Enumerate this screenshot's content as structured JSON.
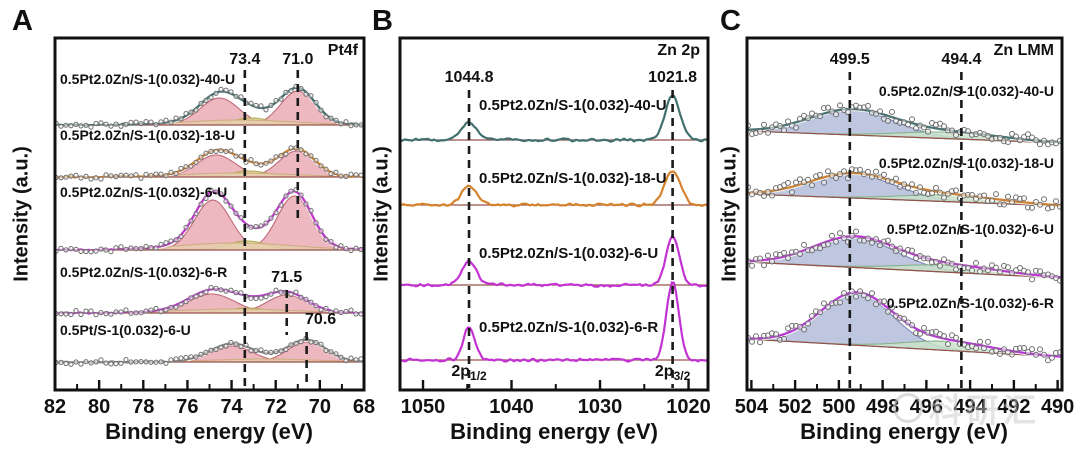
{
  "watermark": {
    "text": "科研汇",
    "color": "#c6c6c6"
  },
  "chart_data": [
    {
      "type": "line",
      "letter": "A",
      "corner_label": "Pt4f",
      "xlabel": "Binding energy (eV)",
      "ylabel": "Intensity (a.u.)",
      "x_range": [
        82,
        68
      ],
      "x_ticks": [
        82,
        80,
        78,
        76,
        74,
        72,
        70,
        68
      ],
      "x_minor_ticks": [
        81,
        79,
        77,
        75,
        73,
        71,
        69
      ],
      "annotations": [
        {
          "value": "73.4",
          "x_ev": 73.4,
          "line_top": 70,
          "line_bottom": 388,
          "label_y": 64,
          "label_dx": 0
        },
        {
          "value": "71.0",
          "x_ev": 71.0,
          "line_top": 70,
          "line_bottom": 223,
          "label_y": 64,
          "label_dx": 0
        },
        {
          "value": "71.5",
          "x_ev": 71.5,
          "line_top": 290,
          "line_bottom": 335,
          "label_y": 282,
          "label_dx": 0
        },
        {
          "value": "70.6",
          "x_ev": 70.6,
          "line_top": 332,
          "line_bottom": 388,
          "label_y": 324,
          "label_dx": 14
        }
      ],
      "traces": [
        {
          "label": "0.5Pt2.0Zn/S-1(0.032)-40-U",
          "color": "#41706f",
          "baseline": 125,
          "tilt": 0,
          "label_y": 84,
          "noise": 1.1,
          "components": [
            {
              "c": 74.55,
              "s": 0.88,
              "h": 27,
              "fill": "#eaabb4",
              "stroke": "#c06a78"
            },
            {
              "c": 71.0,
              "s": 0.78,
              "h": 34,
              "fill": "#eaabb4",
              "stroke": "#c06a78"
            },
            {
              "c": 73.1,
              "s": 0.85,
              "h": 7,
              "fill": "#e2df96",
              "stroke": "#b3aa56"
            },
            {
              "c": 73.6,
              "s": 2.5,
              "h": 5,
              "fill": "#e6cdb0",
              "stroke": "#cfac83"
            }
          ]
        },
        {
          "label": "0.5Pt2.0Zn/S-1(0.032)-18-U",
          "color": "#d5822d",
          "baseline": 177,
          "tilt": 0,
          "label_y": 140,
          "noise": 1.1,
          "components": [
            {
              "c": 74.7,
              "s": 0.88,
              "h": 22,
              "fill": "#eaabb4",
              "stroke": "#c06a78"
            },
            {
              "c": 71.05,
              "s": 0.8,
              "h": 26,
              "fill": "#eaabb4",
              "stroke": "#c06a78"
            },
            {
              "c": 73.2,
              "s": 0.85,
              "h": 6,
              "fill": "#e2df96",
              "stroke": "#b3aa56"
            },
            {
              "c": 73.7,
              "s": 2.5,
              "h": 4,
              "fill": "#e6cdb0",
              "stroke": "#cfac83"
            }
          ]
        },
        {
          "label": "0.5Pt2.0Zn/S-1(0.032)-6-U",
          "color": "#c236cf",
          "baseline": 250,
          "tilt": 0,
          "label_y": 197,
          "noise": 1.2,
          "components": [
            {
              "c": 74.85,
              "s": 0.82,
              "h": 50,
              "fill": "#eaabb4",
              "stroke": "#c06a78"
            },
            {
              "c": 71.15,
              "s": 0.78,
              "h": 54,
              "fill": "#eaabb4",
              "stroke": "#c06a78"
            },
            {
              "c": 73.3,
              "s": 0.9,
              "h": 9,
              "fill": "#e2df96",
              "stroke": "#b3aa56"
            },
            {
              "c": 73.8,
              "s": 2.6,
              "h": 7,
              "fill": "#e6cdb0",
              "stroke": "#cfac83"
            }
          ]
        },
        {
          "label": "0.5Pt2.0Zn/S-1(0.032)-6-R",
          "color": "#bb3bd0",
          "baseline": 313,
          "tilt": 0,
          "label_y": 277,
          "noise": 1.2,
          "components": [
            {
              "c": 74.9,
              "s": 1.05,
              "h": 19,
              "fill": "#eaabb4",
              "stroke": "#c06a78"
            },
            {
              "c": 71.5,
              "s": 0.9,
              "h": 18,
              "fill": "#eaabb4",
              "stroke": "#c06a78"
            },
            {
              "c": 73.3,
              "s": 0.9,
              "h": 5,
              "fill": "#e2df96",
              "stroke": "#b3aa56"
            },
            {
              "c": 73.8,
              "s": 2.6,
              "h": 4,
              "fill": "#e6cdb0",
              "stroke": "#cfac83"
            }
          ]
        },
        {
          "label": "0.5Pt/S-1(0.032)-6-U",
          "color": "#8a8a8a",
          "baseline": 362,
          "tilt": 0,
          "label_y": 335,
          "noise": 1.1,
          "components": [
            {
              "c": 74.0,
              "s": 0.95,
              "h": 16,
              "fill": "#eaabb4",
              "stroke": "#c06a78"
            },
            {
              "c": 70.6,
              "s": 0.85,
              "h": 20,
              "fill": "#eaabb4",
              "stroke": "#c06a78"
            },
            {
              "c": 72.5,
              "s": 2.4,
              "h": 3,
              "fill": "#e6cdb0",
              "stroke": "#cfac83"
            }
          ]
        }
      ]
    },
    {
      "type": "line",
      "letter": "B",
      "corner_label": "Zn 2p",
      "xlabel": "Binding energy (eV)",
      "ylabel": "Intensity (a.u.)",
      "x_range": [
        1052.6,
        1017.8
      ],
      "x_ticks": [
        1050,
        1040,
        1030,
        1020
      ],
      "x_minor_ticks": [
        1045,
        1035,
        1025
      ],
      "annotations": [
        {
          "value": "1044.8",
          "x_ev": 1044.8,
          "line_top": 90,
          "line_bottom": 388,
          "label_y": 82,
          "label_dx": 0
        },
        {
          "value": "1021.8",
          "x_ev": 1021.8,
          "line_top": 90,
          "line_bottom": 388,
          "label_y": 82,
          "label_dx": 0
        }
      ],
      "peak_id_labels": [
        {
          "base": "2p",
          "sub": "1/2",
          "x_ev": 1044.8,
          "y": 376
        },
        {
          "base": "2p",
          "sub": "3/2",
          "x_ev": 1021.8,
          "y": 376
        }
      ],
      "traces": [
        {
          "label": "0.5Pt2.0Zn/S-1(0.032)-40-U",
          "color": "#41706f",
          "baseline": 140,
          "tilt": 0,
          "label_y": 110,
          "noise": 1.7,
          "peaks": [
            {
              "c": 1044.8,
              "s": 0.9,
              "h": 18
            },
            {
              "c": 1021.8,
              "s": 0.85,
              "h": 44
            }
          ]
        },
        {
          "label": "0.5Pt2.0Zn/S-1(0.032)-18-U",
          "color": "#d5822d",
          "baseline": 205,
          "tilt": 0,
          "label_y": 183,
          "noise": 1.7,
          "peaks": [
            {
              "c": 1044.8,
              "s": 0.9,
              "h": 18
            },
            {
              "c": 1021.8,
              "s": 0.9,
              "h": 34
            }
          ]
        },
        {
          "label": "0.5Pt2.0Zn/S-1(0.032)-6-U",
          "color": "#c332d2",
          "baseline": 285,
          "tilt": 0,
          "label_y": 258,
          "noise": 1.8,
          "peaks": [
            {
              "c": 1044.8,
              "s": 0.8,
              "h": 24
            },
            {
              "c": 1021.8,
              "s": 0.75,
              "h": 48
            }
          ]
        },
        {
          "label": "0.5Pt2.0Zn/S-1(0.032)-6-R",
          "color": "#c332d2",
          "baseline": 360,
          "tilt": 0,
          "label_y": 332,
          "noise": 1.8,
          "peaks": [
            {
              "c": 1044.8,
              "s": 0.65,
              "h": 33
            },
            {
              "c": 1021.8,
              "s": 0.7,
              "h": 78
            }
          ]
        }
      ]
    },
    {
      "type": "line",
      "letter": "C",
      "corner_label": "Zn LMM",
      "xlabel": "Binding energy (eV)",
      "ylabel": "Intensity (a.u.)",
      "x_range": [
        504.2,
        489.8
      ],
      "x_ticks": [
        504,
        502,
        500,
        498,
        496,
        494,
        492,
        490
      ],
      "x_minor_ticks": [
        503,
        501,
        499,
        497,
        495,
        493,
        491
      ],
      "annotations": [
        {
          "value": "499.5",
          "x_ev": 499.5,
          "line_top": 72,
          "line_bottom": 388,
          "label_y": 64,
          "label_dx": 0
        },
        {
          "value": "494.4",
          "x_ev": 494.4,
          "line_top": 72,
          "line_bottom": 388,
          "label_y": 64,
          "label_dx": 0
        }
      ],
      "traces": [
        {
          "label": "0.5Pt2.0Zn/S-1(0.032)-40-U",
          "color": "#4a7473",
          "baseline": 137,
          "tilt": 12,
          "label_y": 96,
          "scatter_jitter": 5.5,
          "components": [
            {
              "c": 499.4,
              "s": 1.95,
              "h": 25,
              "fill": "#b3bcda",
              "stroke": "#7d88b7"
            },
            {
              "c": 494.9,
              "s": 2.3,
              "h": 6.5,
              "fill": "#c9e2ca",
              "stroke": "#88b18d"
            }
          ]
        },
        {
          "label": "0.5Pt2.0Zn/S-1(0.032)-18-U",
          "color": "#cf8335",
          "baseline": 200,
          "tilt": 12,
          "label_y": 168,
          "scatter_jitter": 5.5,
          "components": [
            {
              "c": 499.4,
              "s": 1.95,
              "h": 24,
              "fill": "#b3bcda",
              "stroke": "#7d88b7"
            },
            {
              "c": 494.9,
              "s": 2.3,
              "h": 6.5,
              "fill": "#c9e2ca",
              "stroke": "#88b18d"
            }
          ]
        },
        {
          "label": "0.5Pt2.0Zn/S-1(0.032)-6-U",
          "color": "#bb3bd0",
          "baseline": 270,
          "tilt": 16,
          "label_y": 234,
          "scatter_jitter": 5.5,
          "components": [
            {
              "c": 499.3,
              "s": 1.9,
              "h": 30,
              "fill": "#b3bcda",
              "stroke": "#7d88b7"
            },
            {
              "c": 494.9,
              "s": 2.3,
              "h": 7,
              "fill": "#c9e2ca",
              "stroke": "#88b18d"
            }
          ]
        },
        {
          "label": "0.5Pt2.0Zn/S-1(0.032)-6-R",
          "color": "#b83ad6",
          "baseline": 348,
          "tilt": 18,
          "label_y": 308,
          "scatter_jitter": 5.5,
          "components": [
            {
              "c": 499.2,
              "s": 1.65,
              "h": 52,
              "fill": "#b3bcda",
              "stroke": "#7d88b7"
            },
            {
              "c": 495.0,
              "s": 2.0,
              "h": 9,
              "fill": "#c9e2ca",
              "stroke": "#88b18d"
            }
          ]
        }
      ]
    }
  ]
}
